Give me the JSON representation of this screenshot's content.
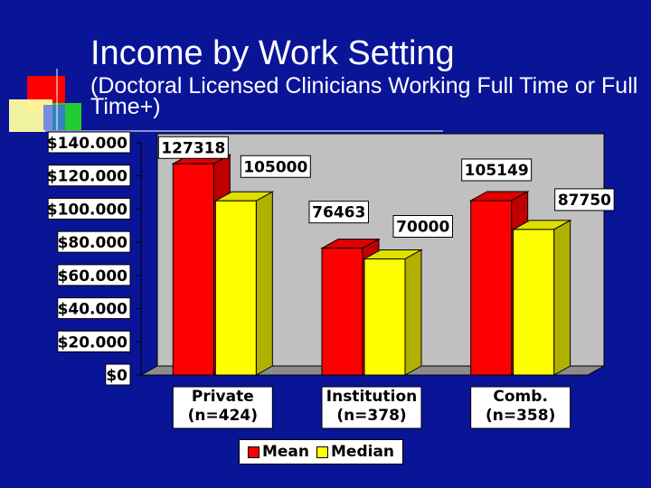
{
  "slide": {
    "title": "Income by Work Setting",
    "subtitle": "(Doctoral Licensed Clinicians Working Full Time or Full Time+)"
  },
  "colors": {
    "background": "#0a1497",
    "plot_area": "#c0c0c0",
    "mean": "#ff0000",
    "median": "#ffff00"
  },
  "logo": {
    "icon": "colored-squares-logo-icon"
  },
  "chart_data": {
    "type": "bar",
    "style": "3d-clustered-column",
    "categories": [
      "Private",
      "Institution",
      "Comb."
    ],
    "category_sublabels": [
      "(n=424)",
      "(n=378)",
      "(n=358)"
    ],
    "series": [
      {
        "name": "Mean",
        "values": [
          127318,
          76463,
          105149
        ]
      },
      {
        "name": "Median",
        "values": [
          105000,
          70000,
          87750
        ]
      }
    ],
    "data_labels": [
      [
        "127318",
        "76463",
        "105149"
      ],
      [
        "105000",
        "70000",
        "87750"
      ]
    ],
    "ylim": [
      0,
      140000
    ],
    "yticks": [
      0,
      20000,
      40000,
      60000,
      80000,
      100000,
      120000,
      140000
    ],
    "ytick_labels": [
      "$0",
      "$20.000",
      "$40.000",
      "$60.000",
      "$80.000",
      "$100.000",
      "$120.000",
      "$140.000"
    ],
    "xlabel": "",
    "ylabel": "",
    "grid": false,
    "legend_position": "bottom"
  }
}
